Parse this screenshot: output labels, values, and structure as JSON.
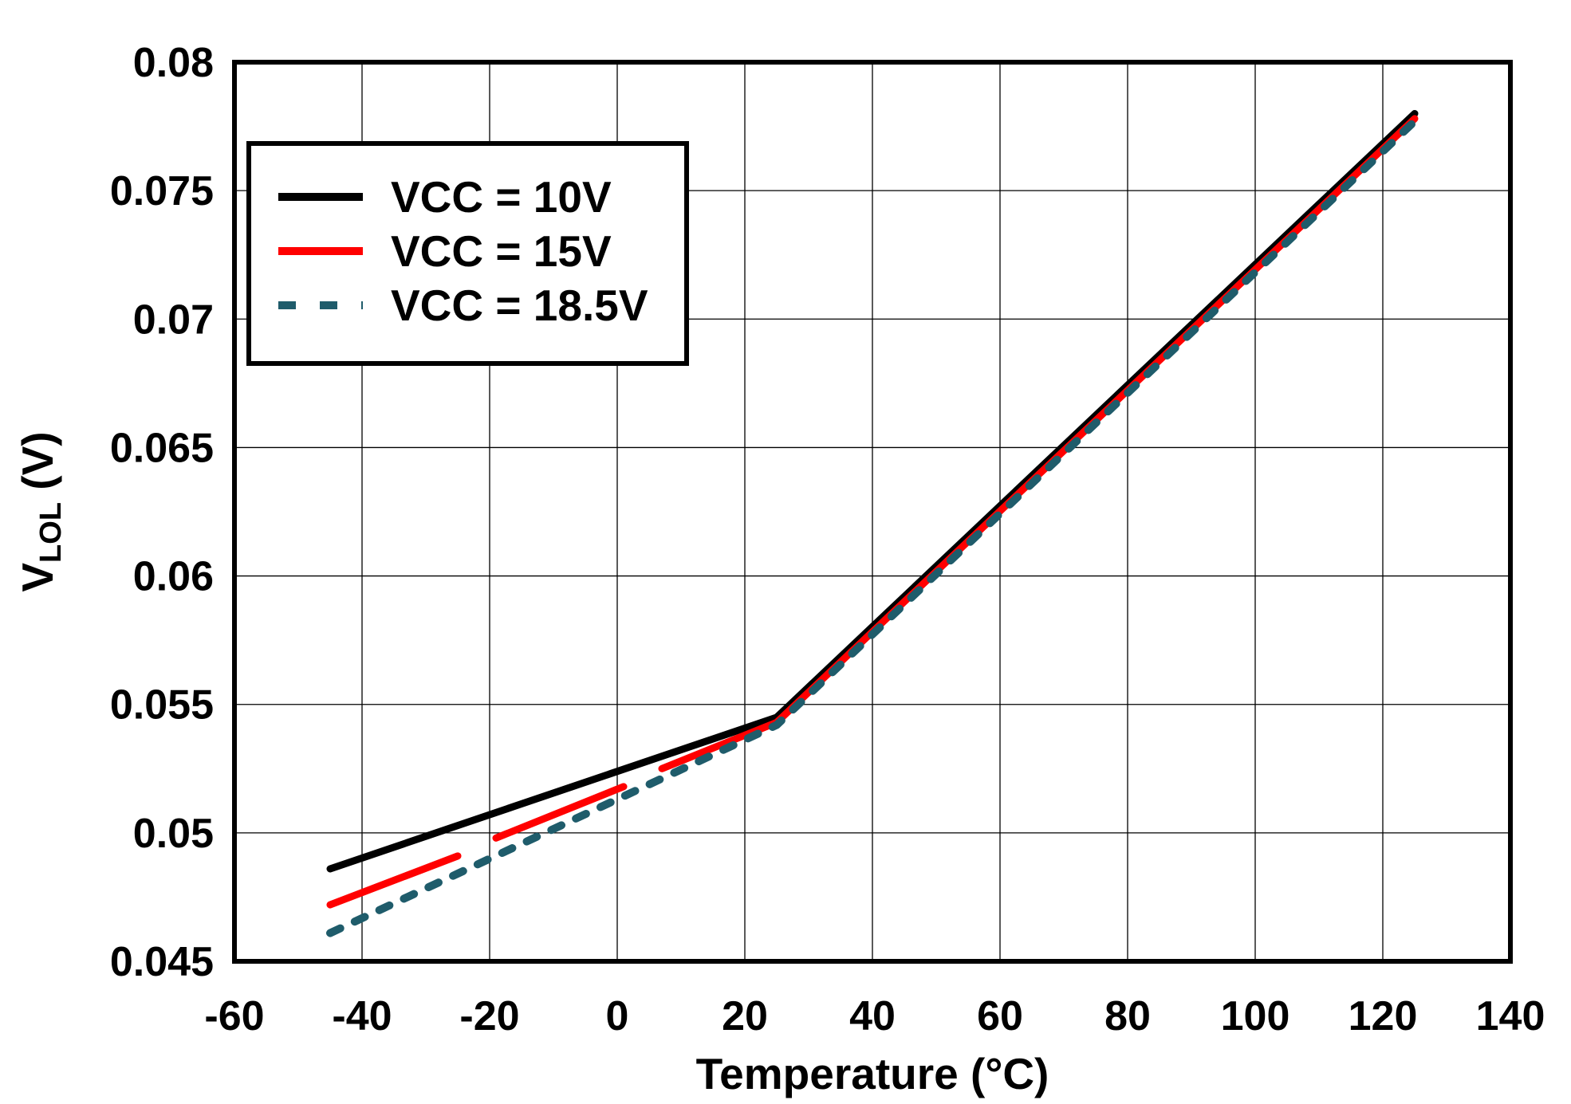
{
  "chart_data": {
    "type": "line",
    "title": "",
    "xlabel": "Temperature (°C)",
    "ylabel": {
      "main": "V",
      "sub": "LOL",
      "unit": " (V)"
    },
    "xlim": [
      -60,
      140
    ],
    "ylim": [
      0.045,
      0.08
    ],
    "xticks": [
      -60,
      -40,
      -20,
      0,
      20,
      40,
      60,
      80,
      100,
      120,
      140
    ],
    "xtick_labels": [
      "-60",
      "-40",
      "-20",
      "0",
      "20",
      "40",
      "60",
      "80",
      "100",
      "120",
      "140"
    ],
    "yticks": [
      0.045,
      0.05,
      0.055,
      0.06,
      0.065,
      0.07,
      0.075,
      0.08
    ],
    "ytick_labels": [
      "0.045",
      "0.05",
      "0.055",
      "0.06",
      "0.065",
      "0.07",
      "0.075",
      "0.08"
    ],
    "grid": true,
    "legend_position": "top-left",
    "series": [
      {
        "name": "VCC = 10V",
        "color": "#000000",
        "style": "solid",
        "segments": [
          [
            [
              -45,
              0.0486
            ],
            [
              25,
              0.0545
            ],
            [
              125,
              0.078
            ]
          ]
        ]
      },
      {
        "name": "VCC = 15V",
        "color": "#ff0000",
        "style": "solid",
        "segments": [
          [
            [
              -45,
              0.0472
            ],
            [
              -25,
              0.0491
            ]
          ],
          [
            [
              -19,
              0.0498
            ],
            [
              1,
              0.0518
            ]
          ],
          [
            [
              7,
              0.0525
            ],
            [
              25,
              0.0543
            ],
            [
              125,
              0.0778
            ]
          ]
        ]
      },
      {
        "name": "VCC = 18.5V",
        "color": "#1f5c6b",
        "style": "dashed",
        "segments": [
          [
            [
              -45,
              0.0461
            ],
            [
              25,
              0.0542
            ],
            [
              125,
              0.0777
            ]
          ]
        ]
      }
    ]
  }
}
